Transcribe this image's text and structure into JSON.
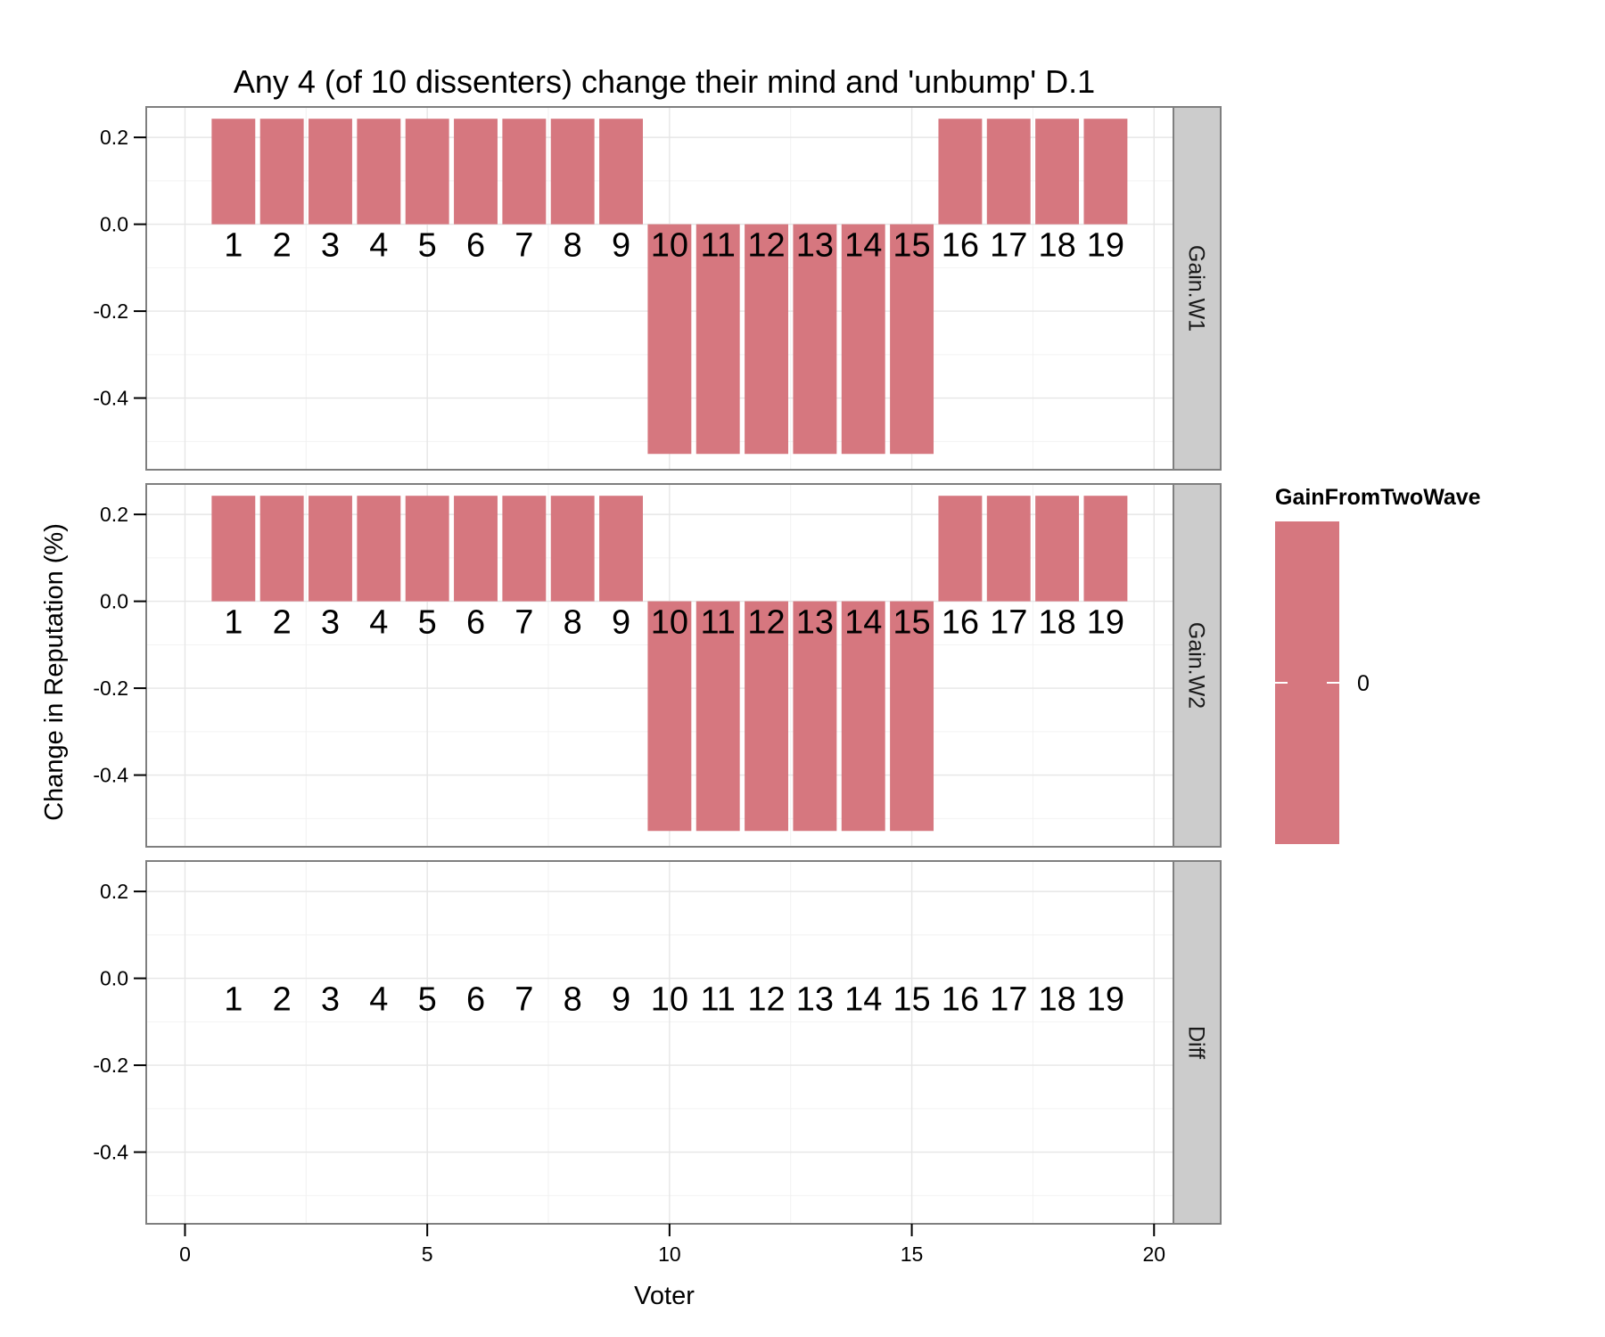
{
  "chart_data": {
    "type": "bar",
    "title": "Any 4 (of 10 dissenters) change their mind and 'unbump' D.1",
    "xlabel": "Voter",
    "ylabel": "Change in Reputation (%)",
    "xlim": [
      -0.8,
      20.4
    ],
    "ylim": [
      -0.565,
      0.27
    ],
    "x_ticks": [
      0,
      5,
      10,
      15,
      20
    ],
    "x_tick_labels": [
      "0",
      "5",
      "10",
      "15",
      "20"
    ],
    "y_ticks": [
      0.2,
      0.0,
      -0.2,
      -0.4
    ],
    "y_tick_labels": [
      "0.2",
      "0.0",
      "-0.2",
      "-0.4"
    ],
    "grid": true,
    "bar_color": "#d6777f",
    "categories": [
      1,
      2,
      3,
      4,
      5,
      6,
      7,
      8,
      9,
      10,
      11,
      12,
      13,
      14,
      15,
      16,
      17,
      18,
      19
    ],
    "bar_labels": [
      "1",
      "2",
      "3",
      "4",
      "5",
      "6",
      "7",
      "8",
      "9",
      "10",
      "11",
      "12",
      "13",
      "14",
      "15",
      "16",
      "17",
      "18",
      "19"
    ],
    "panels": [
      {
        "name": "Gain.W1",
        "values": [
          0.2429,
          0.2429,
          0.2429,
          0.2429,
          0.2429,
          0.2429,
          0.2429,
          0.2429,
          0.2429,
          -0.5286,
          -0.5286,
          -0.5286,
          -0.5286,
          -0.5286,
          -0.5286,
          0.2429,
          0.2429,
          0.2429,
          0.2429
        ]
      },
      {
        "name": "Gain.W2",
        "values": [
          0.2429,
          0.2429,
          0.2429,
          0.2429,
          0.2429,
          0.2429,
          0.2429,
          0.2429,
          0.2429,
          -0.5286,
          -0.5286,
          -0.5286,
          -0.5286,
          -0.5286,
          -0.5286,
          0.2429,
          0.2429,
          0.2429,
          0.2429
        ]
      },
      {
        "name": "Diff",
        "values": [
          0,
          0,
          0,
          0,
          0,
          0,
          0,
          0,
          0,
          0,
          0,
          0,
          0,
          0,
          0,
          0,
          0,
          0,
          0
        ]
      }
    ],
    "legend": {
      "title": "GainFromTwoWave",
      "labels": [
        "0"
      ],
      "placement": "right"
    }
  }
}
